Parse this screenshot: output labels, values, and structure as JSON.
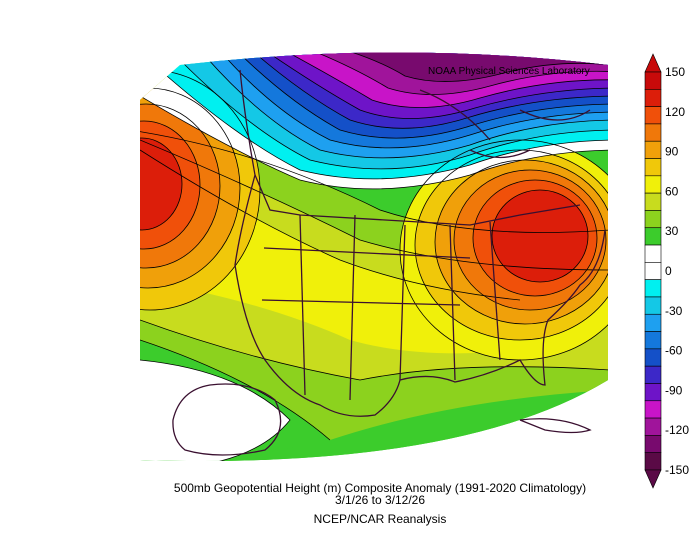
{
  "credit": "NOAA Physical Sciences Laboratory",
  "caption": {
    "line1": "500mb Geopotential Height (m) Composite Anomaly (1991-2020 Climatology)",
    "line2": "3/1/26  to 3/12/26",
    "line3": "NCEP/NCAR Reanalysis"
  },
  "colorbar": {
    "ticks": [
      "150",
      "120",
      "90",
      "60",
      "30",
      "0",
      "-30",
      "-60",
      "-90",
      "-120",
      "-150"
    ],
    "colors": [
      "#5a0a46",
      "#780a6e",
      "#a0149b",
      "#c814c8",
      "#6e14c8",
      "#3c28c8",
      "#1450c8",
      "#1478dc",
      "#1ea0f0",
      "#14c8e6",
      "#00f0f0",
      "#ffffff",
      "#ffffff",
      "#3ccc2c",
      "#8cd21e",
      "#c8dc1e",
      "#f0f00a",
      "#f0c80a",
      "#f0a00a",
      "#f0780a",
      "#f0500a",
      "#dc1e0a",
      "#c80a0a"
    ]
  }
}
